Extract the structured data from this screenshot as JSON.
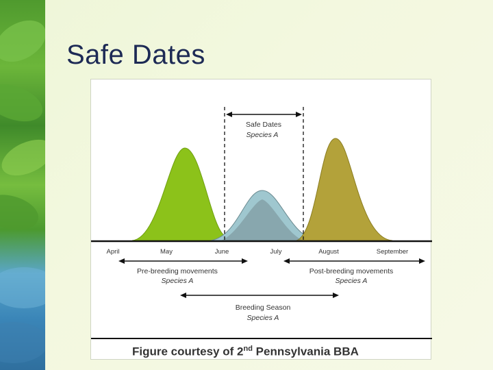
{
  "slide": {
    "title": "Safe Dates"
  },
  "figure": {
    "safe_dates_label": "Safe Dates",
    "safe_dates_species": "Species A",
    "months": [
      "April",
      "May",
      "June",
      "July",
      "August",
      "September"
    ],
    "pre_breeding_label": "Pre-breeding movements",
    "pre_breeding_species": "Species A",
    "post_breeding_label": "Post-breeding movements",
    "post_breeding_species": "Species A",
    "breeding_label": "Breeding Season",
    "breeding_species": "Species A",
    "credit_prefix": "Figure courtesy of 2",
    "credit_sup": "nd",
    "credit_suffix": " Pennsylvania BBA",
    "colors": {
      "pre_breeding": "#8cc21a",
      "breeding": "#9fc7cf",
      "post_breeding": "#b3a23a"
    }
  }
}
